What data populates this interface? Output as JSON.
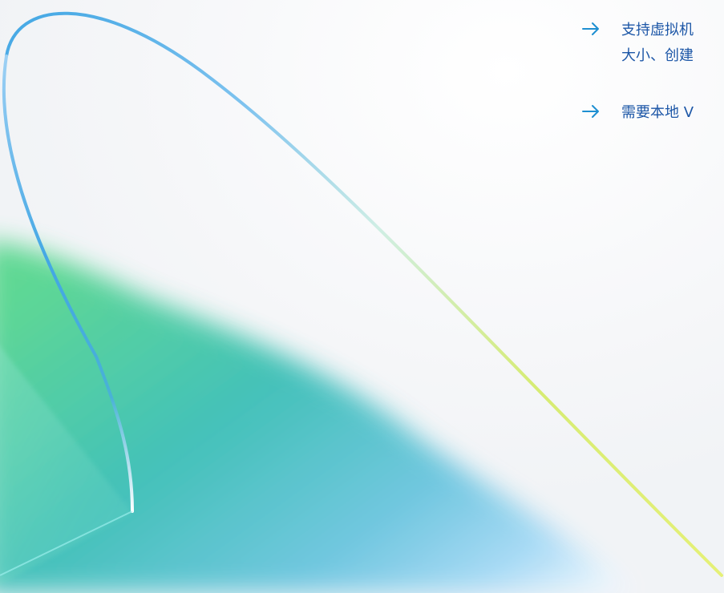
{
  "features": [
    {
      "icon": "arrow-right-icon",
      "lines": [
        "支持虚拟机",
        "大小、创建"
      ]
    },
    {
      "icon": "arrow-right-icon",
      "lines": [
        "需要本地 V"
      ]
    }
  ],
  "colors": {
    "text": "#1d57a7",
    "arrow": "#1e8fd1",
    "background": "#f7f8fa",
    "glow_green": "#58d78f",
    "glow_teal": "#3bbfb6",
    "glow_blue": "#8dcdf0",
    "line_blue": "#43a7e4",
    "line_yellow": "#e5f077"
  }
}
